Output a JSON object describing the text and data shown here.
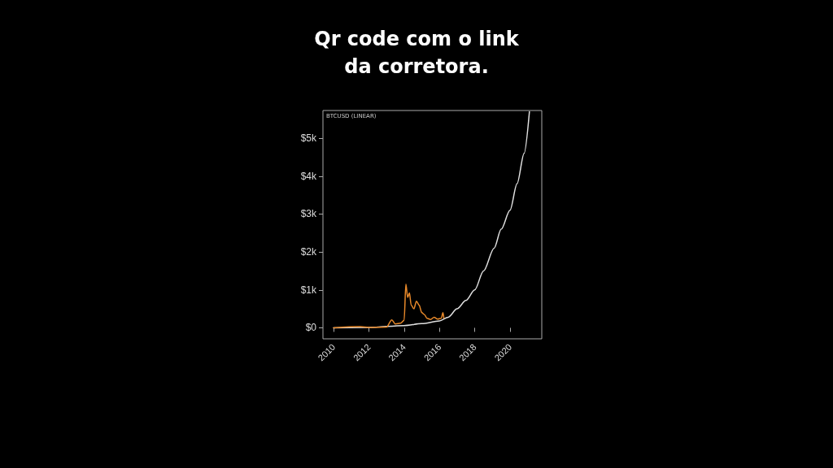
{
  "chart_data": {
    "type": "line",
    "title": "Qr code com o link\nda corretora.",
    "annotations": [
      "BTCUSD (LINEAR)"
    ],
    "xlim": [
      2009.4,
      2021.8
    ],
    "xticks": [
      2010,
      2012,
      2014,
      2016,
      2018,
      2020
    ],
    "ylim": [
      -290,
      5730
    ],
    "yticks": [
      {
        "value": 0,
        "label": "$0"
      },
      {
        "value": 1000,
        "label": "$1k"
      },
      {
        "value": 2000,
        "label": "$2k"
      },
      {
        "value": 3000,
        "label": "$3k"
      },
      {
        "value": 4000,
        "label": "$4k"
      },
      {
        "value": 5000,
        "label": "$5k"
      }
    ],
    "grid": false,
    "marker": "none",
    "line_style": "solid",
    "series": [
      {
        "color": "#e0e0e0",
        "x": [
          2010,
          2012,
          2014,
          2015,
          2016,
          2016.5,
          2017,
          2017.5,
          2018,
          2018.5,
          2019.1,
          2019.5,
          2020,
          2020.4,
          2020.8,
          2021.1
        ],
        "values": [
          0,
          10,
          60,
          110,
          180,
          280,
          500,
          720,
          1000,
          1500,
          2100,
          2600,
          3100,
          3800,
          4600,
          5700
        ]
      },
      {
        "color": "#e8892a",
        "x": [
          2010,
          2011.5,
          2012,
          2013,
          2013.3,
          2013.5,
          2013.8,
          2014.0,
          2014.1,
          2014.2,
          2014.3,
          2014.4,
          2014.55,
          2014.7,
          2014.85,
          2015.0,
          2015.15,
          2015.3,
          2015.5,
          2015.7,
          2015.9,
          2016.1,
          2016.2,
          2016.25
        ],
        "values": [
          0,
          30,
          10,
          20,
          210,
          100,
          120,
          200,
          1150,
          800,
          920,
          600,
          500,
          700,
          600,
          400,
          350,
          250,
          220,
          280,
          230,
          250,
          400,
          260
        ]
      }
    ]
  }
}
